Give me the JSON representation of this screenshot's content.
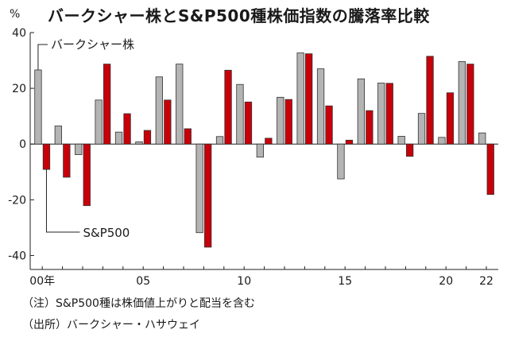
{
  "chart_data": {
    "type": "bar",
    "title": "バークシャー株とS&P500種株価指数の騰落率比較",
    "unit_label": "%",
    "ylim": [
      -45,
      40
    ],
    "yticks": [
      40,
      20,
      0,
      -20,
      -40
    ],
    "grid": false,
    "x": [
      2000,
      2001,
      2002,
      2003,
      2004,
      2005,
      2006,
      2007,
      2008,
      2009,
      2010,
      2011,
      2012,
      2013,
      2014,
      2015,
      2016,
      2017,
      2018,
      2019,
      2020,
      2021,
      2022
    ],
    "xtick_labels": [
      {
        "year": 2000,
        "label": "00年"
      },
      {
        "year": 2005,
        "label": "05"
      },
      {
        "year": 2010,
        "label": "10"
      },
      {
        "year": 2015,
        "label": "15"
      },
      {
        "year": 2020,
        "label": "20"
      },
      {
        "year": 2022,
        "label": "22"
      }
    ],
    "series": [
      {
        "name": "バークシャー株",
        "color": "#b4b4b4",
        "values": [
          26.6,
          6.5,
          -3.8,
          15.8,
          4.3,
          0.8,
          24.1,
          28.7,
          -31.8,
          2.7,
          21.4,
          -4.7,
          16.8,
          32.7,
          27.0,
          -12.5,
          23.4,
          21.9,
          2.8,
          11.0,
          2.4,
          29.6,
          4.0
        ]
      },
      {
        "name": "S&P500",
        "color": "#c8000a",
        "values": [
          -9.1,
          -11.9,
          -22.1,
          28.7,
          10.9,
          4.9,
          15.8,
          5.5,
          -37.0,
          26.5,
          15.1,
          2.1,
          16.0,
          32.4,
          13.7,
          1.4,
          12.0,
          21.8,
          -4.4,
          31.5,
          18.4,
          28.7,
          -18.1
        ]
      }
    ]
  },
  "notes": {
    "note1": "（注）S&P500種は株価値上がりと配当を含む",
    "note2": "（出所）バークシャー・ハサウェイ"
  }
}
